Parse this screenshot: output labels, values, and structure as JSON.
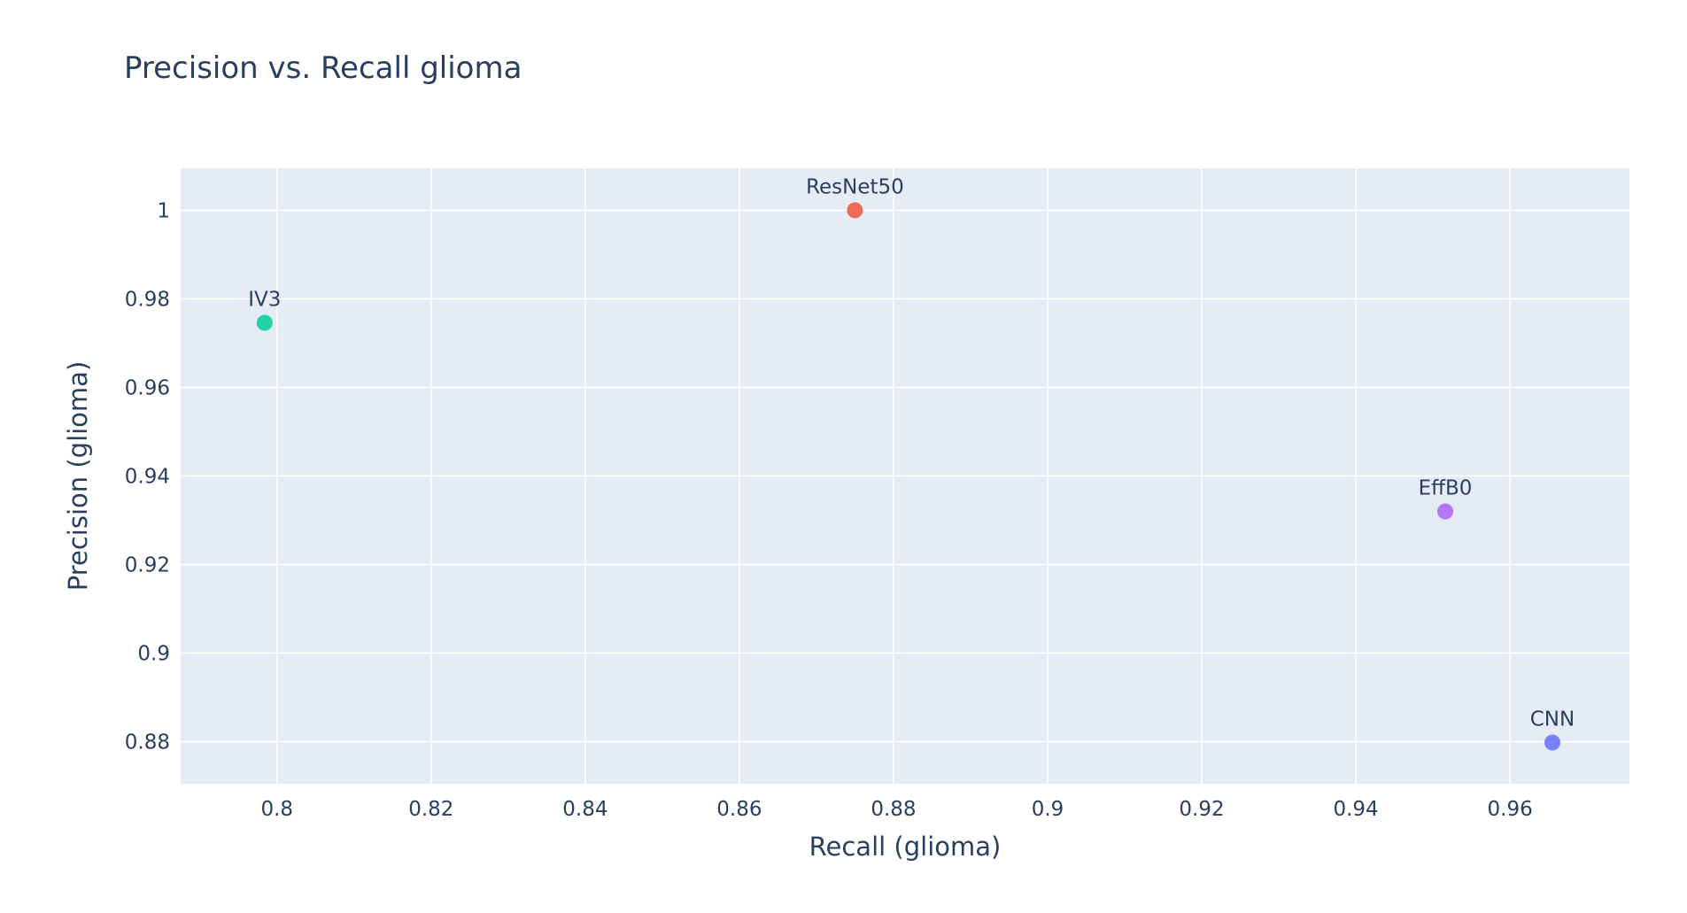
{
  "chart_data": {
    "type": "scatter",
    "title": "Precision vs. Recall glioma",
    "xlabel": "Recall (glioma)",
    "ylabel": "Precision (glioma)",
    "xlim": [
      0.7875,
      0.9755
    ],
    "ylim": [
      0.8705,
      1.0095
    ],
    "x_ticks": [
      0.8,
      0.82,
      0.84,
      0.86,
      0.88,
      0.9,
      0.92,
      0.94,
      0.96
    ],
    "x_tick_labels": [
      "0.8",
      "0.82",
      "0.84",
      "0.86",
      "0.88",
      "0.9",
      "0.92",
      "0.94",
      "0.96"
    ],
    "y_ticks": [
      0.88,
      0.9,
      0.92,
      0.94,
      0.96,
      0.98,
      1.0
    ],
    "y_tick_labels": [
      "0.88",
      "0.9",
      "0.92",
      "0.94",
      "0.96",
      "0.98",
      "1"
    ],
    "grid": true,
    "legend": "none",
    "plot_background": "#e5ecf6",
    "points": [
      {
        "label": "CNN",
        "x": 0.9655,
        "y": 0.8798,
        "color": "#636efa"
      },
      {
        "label": "ResNet50",
        "x": 0.875,
        "y": 1.0,
        "color": "#ef553b"
      },
      {
        "label": "EffB0",
        "x": 0.9516,
        "y": 0.932,
        "color": "#ab63fa"
      },
      {
        "label": "IV3",
        "x": 0.7984,
        "y": 0.9746,
        "color": "#00cc96"
      }
    ]
  }
}
